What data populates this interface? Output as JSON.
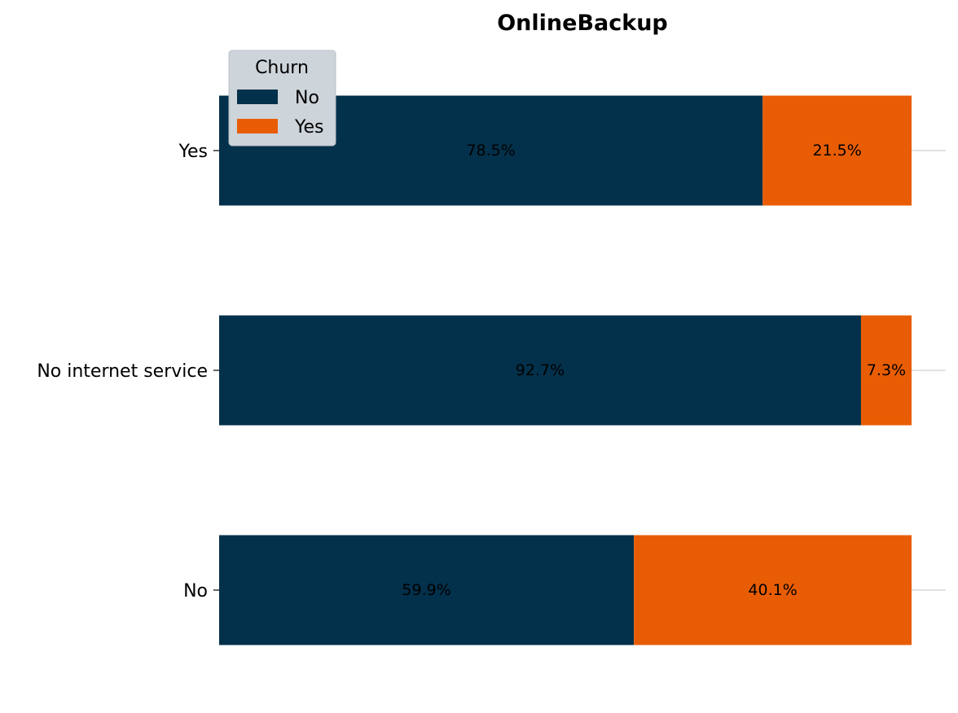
{
  "chart_data": {
    "type": "bar",
    "orientation": "horizontal",
    "stacked": true,
    "title": "OnlineBackup",
    "categories": [
      "Yes",
      "No internet service",
      "No"
    ],
    "series": [
      {
        "name": "No",
        "values": [
          78.5,
          92.7,
          59.9
        ],
        "labels": [
          "78.5%",
          "92.7%",
          "59.9%"
        ],
        "color": "#03304a"
      },
      {
        "name": "Yes",
        "values": [
          21.5,
          7.3,
          40.1
        ],
        "labels": [
          "21.5%",
          "7.3%",
          "40.1%"
        ],
        "color": "#e85d04"
      }
    ],
    "xlim": [
      0,
      100
    ],
    "legend": {
      "title": "Churn",
      "placement": "top-left"
    },
    "grid": "horizontal, light grey",
    "unit": "%"
  }
}
